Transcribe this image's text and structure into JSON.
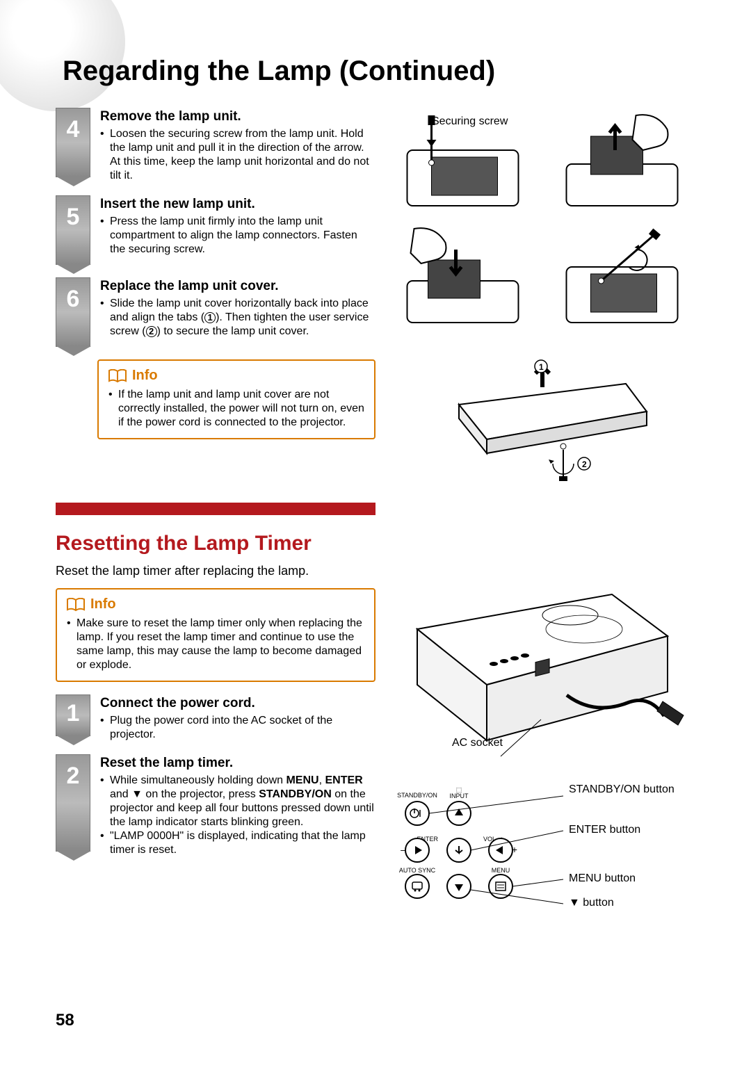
{
  "title": "Regarding the Lamp (Continued)",
  "steps_a": [
    {
      "num": "4",
      "title": "Remove the lamp unit.",
      "text": "Loosen the securing screw from the lamp unit. Hold the lamp unit and pull it in the direction of the arrow. At this time, keep the lamp unit horizontal and do not tilt it."
    },
    {
      "num": "5",
      "title": "Insert the new lamp unit.",
      "text": "Press the lamp unit firmly into the lamp unit compartment to align the lamp connectors. Fasten the securing screw."
    },
    {
      "num": "6",
      "title": "Replace the lamp unit cover.",
      "text_pre": "Slide the lamp unit cover horizontally back into place and align the tabs (",
      "c1": "1",
      "text_mid": "). Then tighten the user service screw (",
      "c2": "2",
      "text_post": ") to secure the lamp unit cover."
    }
  ],
  "info1": {
    "label": "Info",
    "text": "If the lamp unit and lamp unit cover are not correctly installed, the power will not turn on, even if the power cord is connected to the projector."
  },
  "section2": {
    "title": "Resetting the Lamp Timer",
    "intro": "Reset the lamp timer after replacing the lamp."
  },
  "info2": {
    "label": "Info",
    "text": "Make sure to reset the lamp timer only when replacing the lamp. If you reset the lamp timer and continue to use the same lamp, this may cause the lamp to become damaged or explode."
  },
  "steps_b": [
    {
      "num": "1",
      "title": "Connect the power cord.",
      "text": "Plug the power cord into the AC socket of the projector."
    },
    {
      "num": "2",
      "title": "Reset the lamp timer.",
      "bullets": [
        "While simultaneously holding down MENU, ENTER and ▼ on the projector, press STANDBY/ON on the projector and keep all four buttons pressed down until the lamp indicator starts blinking green.",
        "\"LAMP 0000H\" is displayed, indicating that the lamp timer is reset."
      ],
      "bold_words": [
        "MENU",
        "ENTER",
        "STANDBY/ON"
      ]
    }
  ],
  "illus_labels": {
    "securing_screw": "Securing screw",
    "c1": "1",
    "c2": "2"
  },
  "proj_labels": {
    "ac": "AC socket",
    "standby": "STANDBY/ON button",
    "enter": "ENTER button",
    "menu": "MENU button",
    "down": "▼ button"
  },
  "btn_small": {
    "standby": "STANDBY/ON",
    "input": "INPUT",
    "enter": "ENTER",
    "vol": "VOL",
    "autosync": "AUTO SYNC",
    "menu": "MENU",
    "minus": "–",
    "plus": "+"
  },
  "page_number": "58",
  "colors": {
    "red": "#b4191e",
    "orange": "#d97a00"
  }
}
